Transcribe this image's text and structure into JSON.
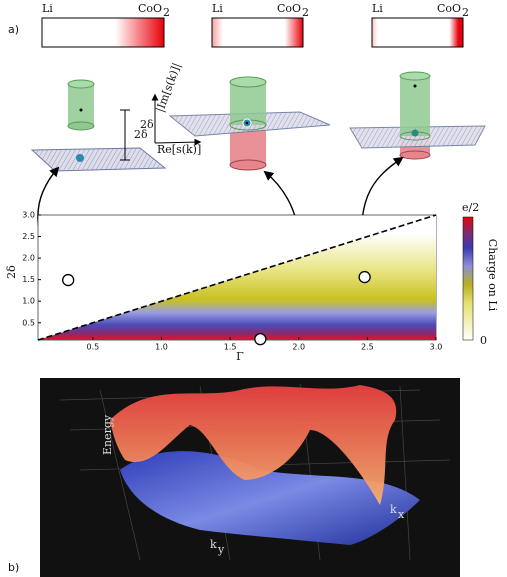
{
  "panel_a": {
    "label": "a)",
    "bars": [
      {
        "left": "Li",
        "right": "CoO",
        "right_sub": "2"
      },
      {
        "left": "Li",
        "right": "CoO",
        "right_sub": "2"
      },
      {
        "left": "Li",
        "right": "CoO",
        "right_sub": "2"
      }
    ]
  },
  "schematics": [
    {
      "gap": "2δ"
    },
    {
      "gap": "2δ",
      "im_axis": "|Im[s(k)]|",
      "re_axis": "Re[s(k)]"
    },
    {}
  ],
  "chart": {
    "xlabel": "Γ",
    "ylabel": "2δ",
    "xlim": [
      0.1,
      3.0
    ],
    "ylim": [
      0.1,
      3.0
    ],
    "xticks": [
      0.5,
      {
        "value": 1,
        "label": "1.0"
      },
      1.5,
      {
        "value": 2,
        "label": "2.0"
      },
      2.5,
      {
        "value": 3,
        "label": "3.0"
      }
    ],
    "yticks": [
      0.5,
      {
        "value": 1,
        "label": "1.0"
      },
      1.5,
      {
        "value": 2,
        "label": "2.0"
      },
      2.5,
      {
        "value": 3,
        "label": "3.0"
      }
    ],
    "points": [
      {
        "x": 0.32,
        "y": 1.49
      },
      {
        "x": 2.48,
        "y": 1.56
      },
      {
        "x": 1.72,
        "y": 0.12
      }
    ],
    "colorbar": {
      "label": "Charge on Li",
      "max_label": "e/2",
      "min_label": "0"
    }
  },
  "panel_b": {
    "label": "b)",
    "zlabel": "Energy",
    "kx": "k",
    "kx_sub": "x",
    "ky": "k",
    "ky_sub": "y"
  }
}
